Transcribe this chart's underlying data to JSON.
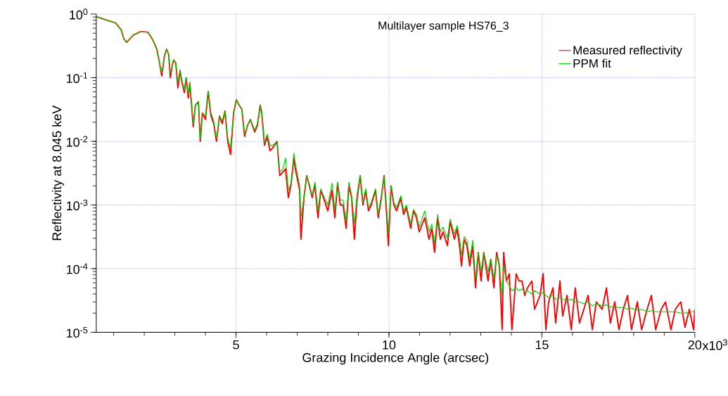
{
  "chart_data": {
    "type": "line",
    "title": "Multilayer sample HS76_3",
    "xlabel": "Grazing Incidence Angle (arcsec)",
    "ylabel": "Reflectivity at 8.045 keV",
    "log": "y",
    "grid": true,
    "legend": "top right",
    "xlim": [
      0.43,
      20
    ],
    "ylim": [
      1e-05,
      1
    ],
    "xticks": [
      5,
      10,
      15,
      20
    ],
    "annotations": [
      "x10$^{3}$"
    ],
    "yticks": [
      {
        "value": 1e-05,
        "label": "10$^{-5}$"
      },
      {
        "value": 0.0001,
        "label": "10$^{-4}$"
      },
      {
        "value": 0.001,
        "label": "10$^{-3}$"
      },
      {
        "value": 0.01,
        "label": "10$^{-2}$"
      },
      {
        "value": 0.1,
        "label": "10$^{-1}$"
      },
      {
        "value": 1,
        "label": "10$^{0}$"
      }
    ],
    "x": [
      0.43,
      1.07,
      1.24,
      1.33,
      1.42,
      1.65,
      1.88,
      2.11,
      2.22,
      2.34,
      2.41,
      2.5,
      2.57,
      2.66,
      2.73,
      2.8,
      2.85,
      2.91,
      2.96,
      3.03,
      3.1,
      3.17,
      3.21,
      3.31,
      3.37,
      3.44,
      3.49,
      3.6,
      3.67,
      3.77,
      3.83,
      3.9,
      4.0,
      4.09,
      4.18,
      4.27,
      4.36,
      4.46,
      4.55,
      4.64,
      4.73,
      4.82,
      4.92,
      5.01,
      5.1,
      5.19,
      5.28,
      5.38,
      5.47,
      5.61,
      5.7,
      5.79,
      5.84,
      5.93,
      6.02,
      6.11,
      6.2,
      6.34,
      6.43,
      6.53,
      6.62,
      6.71,
      6.8,
      6.89,
      6.94,
      7.08,
      7.12,
      7.22,
      7.31,
      7.4,
      7.49,
      7.58,
      7.68,
      7.77,
      7.86,
      8.0,
      8.14,
      8.23,
      8.32,
      8.41,
      8.5,
      8.6,
      8.69,
      8.78,
      8.87,
      8.96,
      9.06,
      9.15,
      9.24,
      9.33,
      9.42,
      9.56,
      9.65,
      9.75,
      9.84,
      9.93,
      9.98,
      10.07,
      10.16,
      10.25,
      10.39,
      10.48,
      10.57,
      10.71,
      10.8,
      10.9,
      10.99,
      11.08,
      11.17,
      11.31,
      11.4,
      11.49,
      11.59,
      11.68,
      11.77,
      11.91,
      12.0,
      12.14,
      12.23,
      12.32,
      12.37,
      12.46,
      12.55,
      12.64,
      12.74,
      12.83,
      12.92,
      13.01,
      13.1,
      13.24,
      13.33,
      13.43,
      13.52,
      13.61,
      13.7,
      13.75,
      13.84,
      13.93,
      14.02,
      14.16,
      14.25,
      14.35,
      14.44,
      14.53,
      14.67,
      14.76,
      14.94,
      15.04,
      15.13,
      15.22,
      15.36,
      15.45,
      15.59,
      15.68,
      15.82,
      15.96,
      16.09,
      16.23,
      16.37,
      16.51,
      16.65,
      16.78,
      16.97,
      17.11,
      17.24,
      17.38,
      17.52,
      17.66,
      17.8,
      17.93,
      18.12,
      18.26,
      18.44,
      18.58,
      18.72,
      18.9,
      19.04,
      19.22,
      19.36,
      19.54,
      19.68,
      19.82,
      19.96,
      20.0
    ],
    "series": [
      {
        "name": "Measured reflectivity",
        "color": "#ff0000",
        "values": [
          0.91,
          0.72,
          0.57,
          0.41,
          0.36,
          0.47,
          0.53,
          0.52,
          0.44,
          0.34,
          0.28,
          0.17,
          0.107,
          0.22,
          0.28,
          0.23,
          0.1,
          0.15,
          0.19,
          0.17,
          0.069,
          0.13,
          0.096,
          0.058,
          0.1,
          0.048,
          0.083,
          0.017,
          0.037,
          0.042,
          0.01,
          0.028,
          0.022,
          0.061,
          0.025,
          0.019,
          0.01,
          0.025,
          0.019,
          0.03,
          0.01,
          0.0062,
          0.028,
          0.045,
          0.037,
          0.032,
          0.012,
          0.018,
          0.022,
          0.014,
          0.018,
          0.037,
          0.028,
          0.0087,
          0.012,
          0.0071,
          0.0079,
          0.01,
          0.0029,
          0.0033,
          0.0037,
          0.0013,
          0.0021,
          0.0055,
          0.0037,
          0.0017,
          0.00029,
          0.0013,
          0.0029,
          0.002,
          0.0013,
          0.0021,
          0.00063,
          0.0017,
          0.0013,
          0.00081,
          0.0017,
          0.00063,
          0.0022,
          0.001,
          0.001,
          0.00043,
          0.002,
          0.0013,
          0.00029,
          0.0013,
          0.0029,
          0.001,
          0.0017,
          0.00081,
          0.001,
          0.0017,
          0.00063,
          0.0013,
          0.0029,
          0.00063,
          0.00023,
          0.002,
          0.001,
          0.00081,
          0.0013,
          0.00071,
          0.00092,
          0.00043,
          0.00081,
          0.00063,
          0.00038,
          0.00049,
          0.00063,
          0.00029,
          0.00043,
          0.00018,
          0.00063,
          0.00029,
          0.00038,
          0.00023,
          0.00055,
          0.00029,
          0.00043,
          0.0002,
          0.00011,
          0.00029,
          0.00023,
          0.00011,
          0.00023,
          5e-05,
          0.00018,
          6.4e-05,
          0.00018,
          6.4e-05,
          0.00014,
          5e-05,
          0.00018,
          0.00011,
          1.1e-05,
          0.00018,
          6.4e-05,
          8.3e-05,
          1.1e-05,
          8.3e-05,
          6.4e-05,
          6.4e-05,
          3.8e-05,
          5e-05,
          6.4e-05,
          2.3e-05,
          3.8e-05,
          8.3e-05,
          1.1e-05,
          3e-05,
          5e-05,
          1.4e-05,
          6.4e-05,
          1.8e-05,
          3.8e-05,
          1.1e-05,
          5e-05,
          1.4e-05,
          2.3e-05,
          3.8e-05,
          1.1e-05,
          3e-05,
          2.3e-05,
          5e-05,
          1.4e-05,
          3e-05,
          1.1e-05,
          2.3e-05,
          3.8e-05,
          1.1e-05,
          3e-05,
          1.1e-05,
          2.3e-05,
          3.8e-05,
          1.1e-05,
          2.3e-05,
          3e-05,
          1.1e-05,
          2.3e-05,
          3e-05,
          1.2e-05,
          2.3e-05,
          1.1e-05,
          2.3e-05
        ]
      },
      {
        "name": "PPM fit",
        "color": "#00cc00",
        "values": [
          0.91,
          0.72,
          0.57,
          0.41,
          0.36,
          0.47,
          0.53,
          0.52,
          0.44,
          0.34,
          0.28,
          0.17,
          0.12,
          0.22,
          0.28,
          0.23,
          0.12,
          0.15,
          0.19,
          0.17,
          0.083,
          0.13,
          0.1,
          0.065,
          0.1,
          0.054,
          0.083,
          0.019,
          0.037,
          0.042,
          0.011,
          0.028,
          0.025,
          0.061,
          0.028,
          0.021,
          0.011,
          0.025,
          0.021,
          0.03,
          0.011,
          0.0079,
          0.028,
          0.045,
          0.037,
          0.032,
          0.013,
          0.018,
          0.022,
          0.015,
          0.019,
          0.037,
          0.03,
          0.0095,
          0.013,
          0.0087,
          0.0087,
          0.01,
          0.0033,
          0.0037,
          0.0055,
          0.0017,
          0.0022,
          0.0065,
          0.0045,
          0.002,
          0.00063,
          0.0013,
          0.0029,
          0.0021,
          0.0014,
          0.0023,
          0.00081,
          0.0018,
          0.0014,
          0.001,
          0.0022,
          0.00081,
          0.0023,
          0.0012,
          0.0012,
          0.00055,
          0.0023,
          0.0014,
          0.0005,
          0.0015,
          0.0029,
          0.0011,
          0.0018,
          0.0009,
          0.0011,
          0.0018,
          0.00071,
          0.0014,
          0.0028,
          0.00081,
          0.00035,
          0.002,
          0.0011,
          0.00092,
          0.0014,
          0.00081,
          0.001,
          0.0005,
          0.00085,
          0.00071,
          0.00045,
          0.0006,
          0.00081,
          0.00038,
          0.0005,
          0.00025,
          0.00071,
          0.00038,
          0.00045,
          0.0003,
          0.0006,
          0.00035,
          0.00048,
          0.00028,
          0.00016,
          0.00032,
          0.00028,
          0.00014,
          0.00028,
          7e-05,
          0.00018,
          9e-05,
          0.00018,
          9e-05,
          0.00014,
          7e-05,
          0.00016,
          0.00011,
          3.8e-05,
          0.00011,
          6.4e-05,
          5.5e-05,
          4.5e-05,
          5e-05,
          4.5e-05,
          4.8e-05,
          4.2e-05,
          4.5e-05,
          4e-05,
          4.5e-05,
          4e-05,
          4.2e-05,
          3.8e-05,
          3.5e-05,
          3.8e-05,
          3.3e-05,
          3.5e-05,
          3.3e-05,
          3.2e-05,
          3.3e-05,
          3e-05,
          3e-05,
          2.8e-05,
          3e-05,
          2.6e-05,
          2.8e-05,
          2.6e-05,
          2.7e-05,
          2.5e-05,
          2.6e-05,
          2.4e-05,
          2.5e-05,
          2.3e-05,
          2.4e-05,
          2.2e-05,
          2.3e-05,
          2.1e-05,
          2.2e-05,
          2.1e-05,
          2.1e-05,
          2.1e-05,
          2.1e-05,
          2.1e-05,
          2e-05,
          2e-05,
          2.1e-05,
          2.1e-05,
          2.1e-05
        ]
      }
    ]
  }
}
